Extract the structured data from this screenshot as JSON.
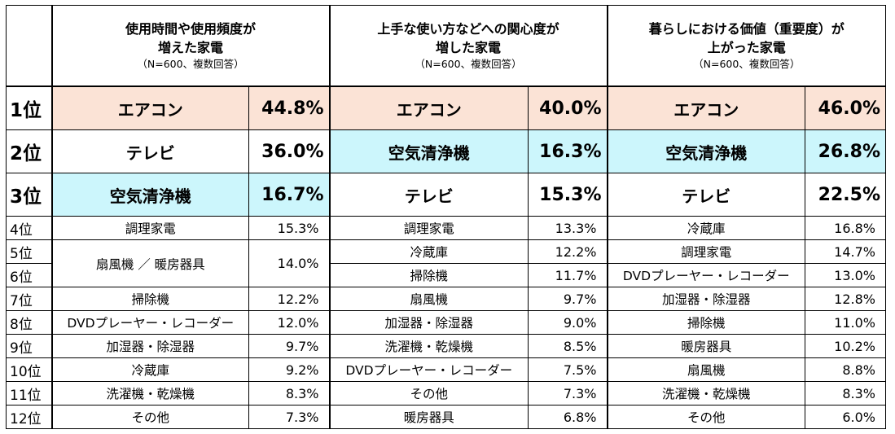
{
  "headers": [
    {
      "title1": "使用時間や使用頻度が",
      "title2": "増えた家電",
      "note": "（N=600、複数回答）"
    },
    {
      "title1": "上手な使い方などへの関心度が",
      "title2": "増した家電",
      "note": "（N=600、複数回答）"
    },
    {
      "title1": "暮らしにおける価値（重要度）が",
      "title2": "上がった家電",
      "note": "（N=600、複数回答）"
    }
  ],
  "ranks": [
    "1位",
    "2位",
    "3位",
    "4位",
    "5位",
    "6位",
    "7位",
    "8位",
    "9位",
    "10位",
    "11位",
    "12位"
  ],
  "col1": [
    {
      "item": "エアコン",
      "pct": "44.8%"
    },
    {
      "item": "テレビ",
      "pct": "36.0%"
    },
    {
      "item": "空気清浄機",
      "pct": "16.7%"
    },
    {
      "item": "調理家電",
      "pct": "15.3%"
    },
    {
      "item": "扇風機 ／ 暖房器具",
      "pct": "14.0%"
    },
    {
      "item": "掃除機",
      "pct": "12.2%"
    },
    {
      "item": "DVDプレーヤー・レコーダー",
      "pct": "12.0%"
    },
    {
      "item": "加湿器・除湿器",
      "pct": "9.7%"
    },
    {
      "item": "冷蔵庫",
      "pct": "9.2%"
    },
    {
      "item": "洗濯機・乾燥機",
      "pct": "8.3%"
    },
    {
      "item": "その他",
      "pct": "7.3%"
    }
  ],
  "col2": [
    {
      "item": "エアコン",
      "pct": "40.0%"
    },
    {
      "item": "空気清浄機",
      "pct": "16.3%"
    },
    {
      "item": "テレビ",
      "pct": "15.3%"
    },
    {
      "item": "調理家電",
      "pct": "13.3%"
    },
    {
      "item": "冷蔵庫",
      "pct": "12.2%"
    },
    {
      "item": "掃除機",
      "pct": "11.7%"
    },
    {
      "item": "扇風機",
      "pct": "9.7%"
    },
    {
      "item": "加湿器・除湿器",
      "pct": "9.0%"
    },
    {
      "item": "洗濯機・乾燥機",
      "pct": "8.5%"
    },
    {
      "item": "DVDプレーヤー・レコーダー",
      "pct": "7.5%"
    },
    {
      "item": "その他",
      "pct": "7.3%"
    },
    {
      "item": "暖房器具",
      "pct": "6.8%"
    }
  ],
  "col3": [
    {
      "item": "エアコン",
      "pct": "46.0%"
    },
    {
      "item": "空気清浄機",
      "pct": "26.8%"
    },
    {
      "item": "テレビ",
      "pct": "22.5%"
    },
    {
      "item": "冷蔵庫",
      "pct": "16.8%"
    },
    {
      "item": "調理家電",
      "pct": "14.7%"
    },
    {
      "item": "DVDプレーヤー・レコーダー",
      "pct": "13.0%"
    },
    {
      "item": "加湿器・除湿器",
      "pct": "12.8%"
    },
    {
      "item": "掃除機",
      "pct": "11.0%"
    },
    {
      "item": "暖房器具",
      "pct": "10.2%"
    },
    {
      "item": "扇風機",
      "pct": "8.8%"
    },
    {
      "item": "洗濯機・乾燥機",
      "pct": "8.3%"
    },
    {
      "item": "その他",
      "pct": "6.0%"
    }
  ],
  "colors": {
    "aircon_highlight": "#fbe3d6",
    "purifier_highlight": "#ccf6fc"
  }
}
